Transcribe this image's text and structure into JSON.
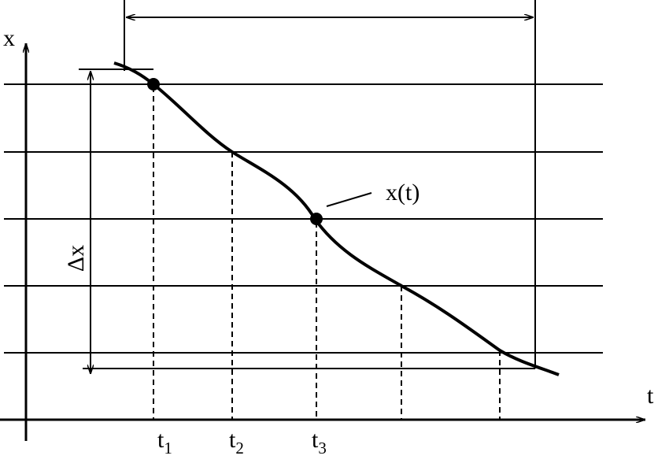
{
  "axes": {
    "vertical_label": "x",
    "horizontal_label": "t"
  },
  "curve_label": "x(t)",
  "interval_label": "Δx",
  "time_marks": [
    {
      "base": "t",
      "sub": "1"
    },
    {
      "base": "t",
      "sub": "2"
    },
    {
      "base": "t",
      "sub": "3"
    }
  ]
}
